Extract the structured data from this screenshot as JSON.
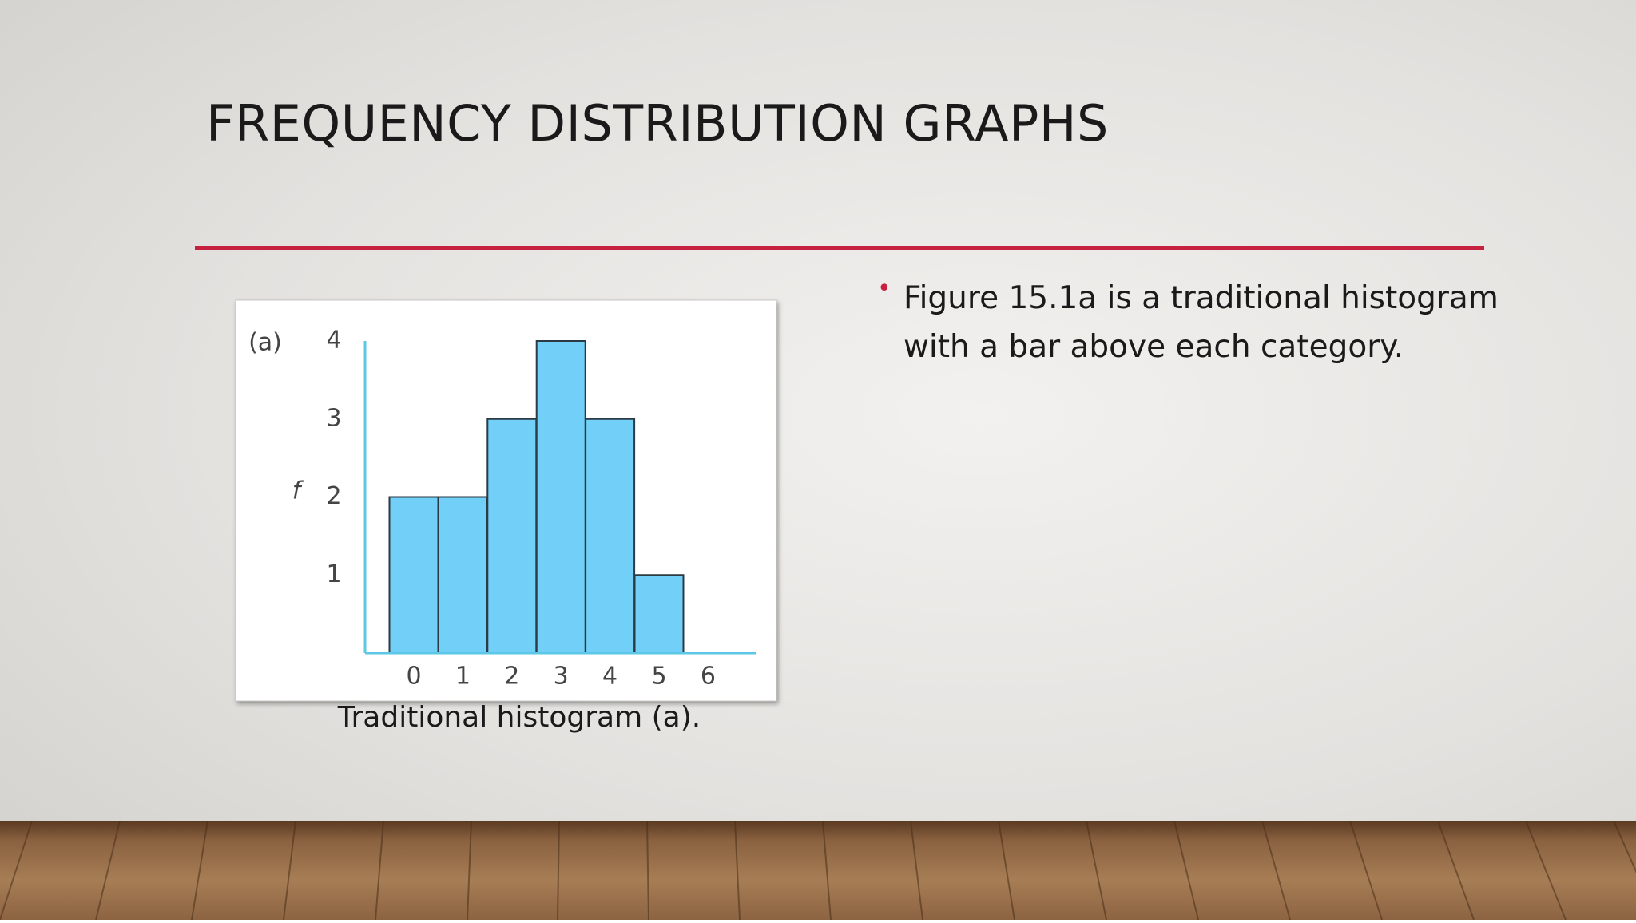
{
  "title": "FREQUENCY DISTRIBUTION GRAPHS",
  "bullet": "Figure 15.1a is a traditional histogram with a bar above each category.",
  "caption": "Traditional histogram (a).",
  "chart_data": {
    "type": "bar",
    "label": "(a)",
    "y_label": "f",
    "categories": [
      "0",
      "1",
      "2",
      "3",
      "4",
      "5",
      "6"
    ],
    "values": [
      2,
      2,
      3,
      4,
      3,
      1,
      0
    ],
    "color": "#72cff7",
    "ylim": [
      0,
      4
    ],
    "yticks": [
      1,
      2,
      3,
      4
    ]
  }
}
